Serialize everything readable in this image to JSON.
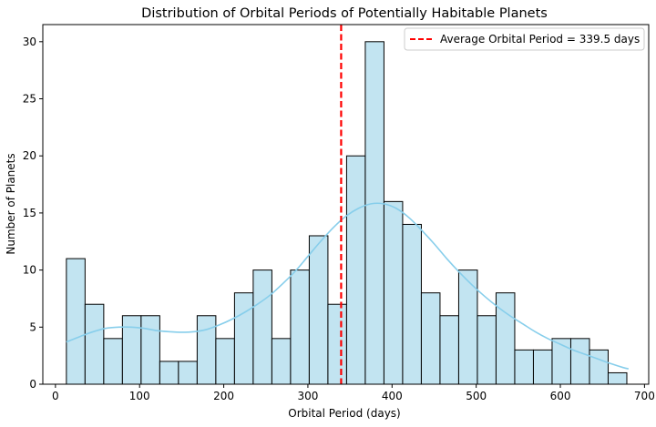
{
  "chart_data": {
    "type": "bar",
    "title": "Distribution of Orbital Periods of Potentially Habitable Planets",
    "xlabel": "Orbital Period (days)",
    "ylabel": "Number of Planets",
    "xlim": [
      -15,
      705
    ],
    "ylim": [
      0,
      31.5
    ],
    "xticks": [
      0,
      100,
      200,
      300,
      400,
      500,
      600,
      700
    ],
    "yticks": [
      0,
      5,
      10,
      15,
      20,
      25,
      30
    ],
    "bin_edges": [
      13,
      35.2,
      57.4,
      79.6,
      101.8,
      124,
      146.2,
      168.4,
      190.6,
      212.8,
      235,
      257.2,
      279.4,
      301.6,
      323.8,
      346,
      368.2,
      390.4,
      412.6,
      434.8,
      457,
      479.2,
      501.4,
      523.6,
      545.8,
      568,
      590.2,
      612.4,
      634.6,
      656.8,
      679
    ],
    "counts": [
      11,
      7,
      4,
      6,
      6,
      2,
      2,
      6,
      4,
      8,
      10,
      4,
      10,
      13,
      7,
      20,
      30,
      16,
      14,
      8,
      6,
      10,
      6,
      8,
      3,
      3,
      4,
      4,
      3,
      1
    ],
    "bar_color": "#c2e4f1",
    "bar_edge_color": "#000000",
    "kde": {
      "color": "#87ceeb",
      "x": [
        13,
        30,
        45,
        60,
        75,
        90,
        105,
        120,
        135,
        150,
        165,
        180,
        195,
        210,
        225,
        240,
        255,
        270,
        285,
        300,
        315,
        330,
        345,
        360,
        375,
        390,
        405,
        420,
        435,
        450,
        465,
        480,
        495,
        510,
        525,
        540,
        555,
        570,
        585,
        600,
        615,
        630,
        645,
        660,
        675,
        681
      ],
      "y": [
        3.7,
        4.2,
        4.6,
        4.9,
        5.0,
        5.0,
        4.9,
        4.7,
        4.6,
        4.55,
        4.6,
        4.8,
        5.2,
        5.7,
        6.3,
        7.0,
        7.8,
        8.8,
        9.9,
        11.2,
        12.5,
        13.7,
        14.7,
        15.4,
        15.8,
        15.8,
        15.4,
        14.6,
        13.5,
        12.3,
        11.0,
        9.8,
        8.7,
        7.7,
        6.8,
        6.0,
        5.3,
        4.6,
        4.0,
        3.5,
        3.0,
        2.6,
        2.2,
        1.8,
        1.45,
        1.35
      ]
    },
    "mean_line": {
      "x": 339.5,
      "color": "#ff0000",
      "label": "Average Orbital Period = 339.5 days"
    },
    "legend_position": "top-right",
    "grid": false
  }
}
